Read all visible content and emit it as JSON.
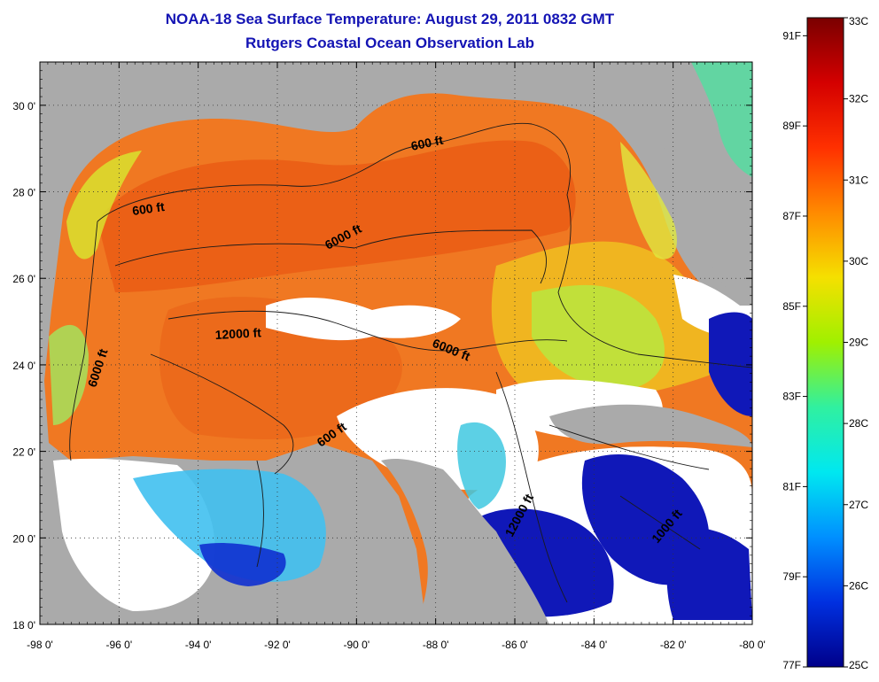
{
  "title": "NOAA-18 Sea Surface Temperature:  August 29, 2011 0832 GMT",
  "subtitle": "Rutgers Coastal Ocean Observation Lab",
  "axes": {
    "x_ticks": [
      "-98 0'",
      "-96 0'",
      "-94 0'",
      "-92 0'",
      "-90 0'",
      "-88 0'",
      "-86 0'",
      "-84 0'",
      "-82 0'",
      "-80 0'"
    ],
    "y_ticks": [
      "18 0'",
      "20 0'",
      "22 0'",
      "24 0'",
      "26 0'",
      "28 0'",
      "30 0'"
    ],
    "lon_range": [
      -98,
      -80
    ],
    "lat_range": [
      18,
      31
    ]
  },
  "contour_labels": [
    "600 ft",
    "600 ft",
    "6000 ft",
    "12000 ft",
    "6000 ft",
    "6000 ft",
    "600 ft",
    "12000 ft",
    "1000 ft"
  ],
  "colorbar": {
    "celsius": [
      "33C",
      "32C",
      "31C",
      "30C",
      "29C",
      "28C",
      "27C",
      "26C",
      "25C"
    ],
    "fahrenheit": [
      "91F",
      "89F",
      "87F",
      "85F",
      "83F",
      "81F",
      "79F",
      "77F"
    ],
    "colors": [
      "#7a0000",
      "#d40000",
      "#ff3000",
      "#ff8a00",
      "#f5e000",
      "#a0f000",
      "#30f0a0",
      "#00e8f0",
      "#0090ff",
      "#0030e0",
      "#00008a"
    ]
  },
  "colors": {
    "land": "#aaaaaa",
    "no_data": "#ffffff",
    "title": "#1414b4",
    "warm_water": "#f06a10",
    "cool_water": "#1020d0"
  }
}
